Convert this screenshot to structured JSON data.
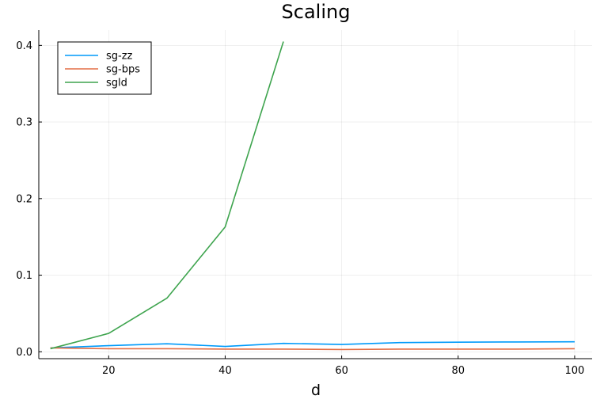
{
  "chart_data": {
    "type": "line",
    "title": "Scaling",
    "xlabel": "d",
    "ylabel": "",
    "xlim": [
      8,
      103
    ],
    "ylim": [
      -0.009,
      0.42
    ],
    "xticks": [
      20,
      40,
      60,
      80,
      100
    ],
    "yticks": [
      0.0,
      0.1,
      0.2,
      0.3,
      0.4
    ],
    "ytick_labels": [
      "0.0",
      "0.1",
      "0.2",
      "0.3",
      "0.4"
    ],
    "grid": true,
    "legend_position": "top-left",
    "series": [
      {
        "name": "sg-zz",
        "color": "#009AFA",
        "x": [
          10,
          20,
          30,
          40,
          50,
          60,
          70,
          80,
          90,
          100
        ],
        "y": [
          0.005,
          0.008,
          0.0105,
          0.007,
          0.011,
          0.0095,
          0.012,
          0.0125,
          0.0128,
          0.013
        ]
      },
      {
        "name": "sg-bps",
        "color": "#E36F47",
        "x": [
          10,
          20,
          30,
          40,
          50,
          60,
          70,
          80,
          90,
          100
        ],
        "y": [
          0.005,
          0.004,
          0.004,
          0.0035,
          0.0035,
          0.003,
          0.0035,
          0.0035,
          0.0035,
          0.004
        ]
      },
      {
        "name": "sgld",
        "color": "#3EA44E",
        "x": [
          10,
          20,
          30,
          40,
          50
        ],
        "y": [
          0.004,
          0.024,
          0.07,
          0.163,
          0.405
        ]
      }
    ]
  }
}
